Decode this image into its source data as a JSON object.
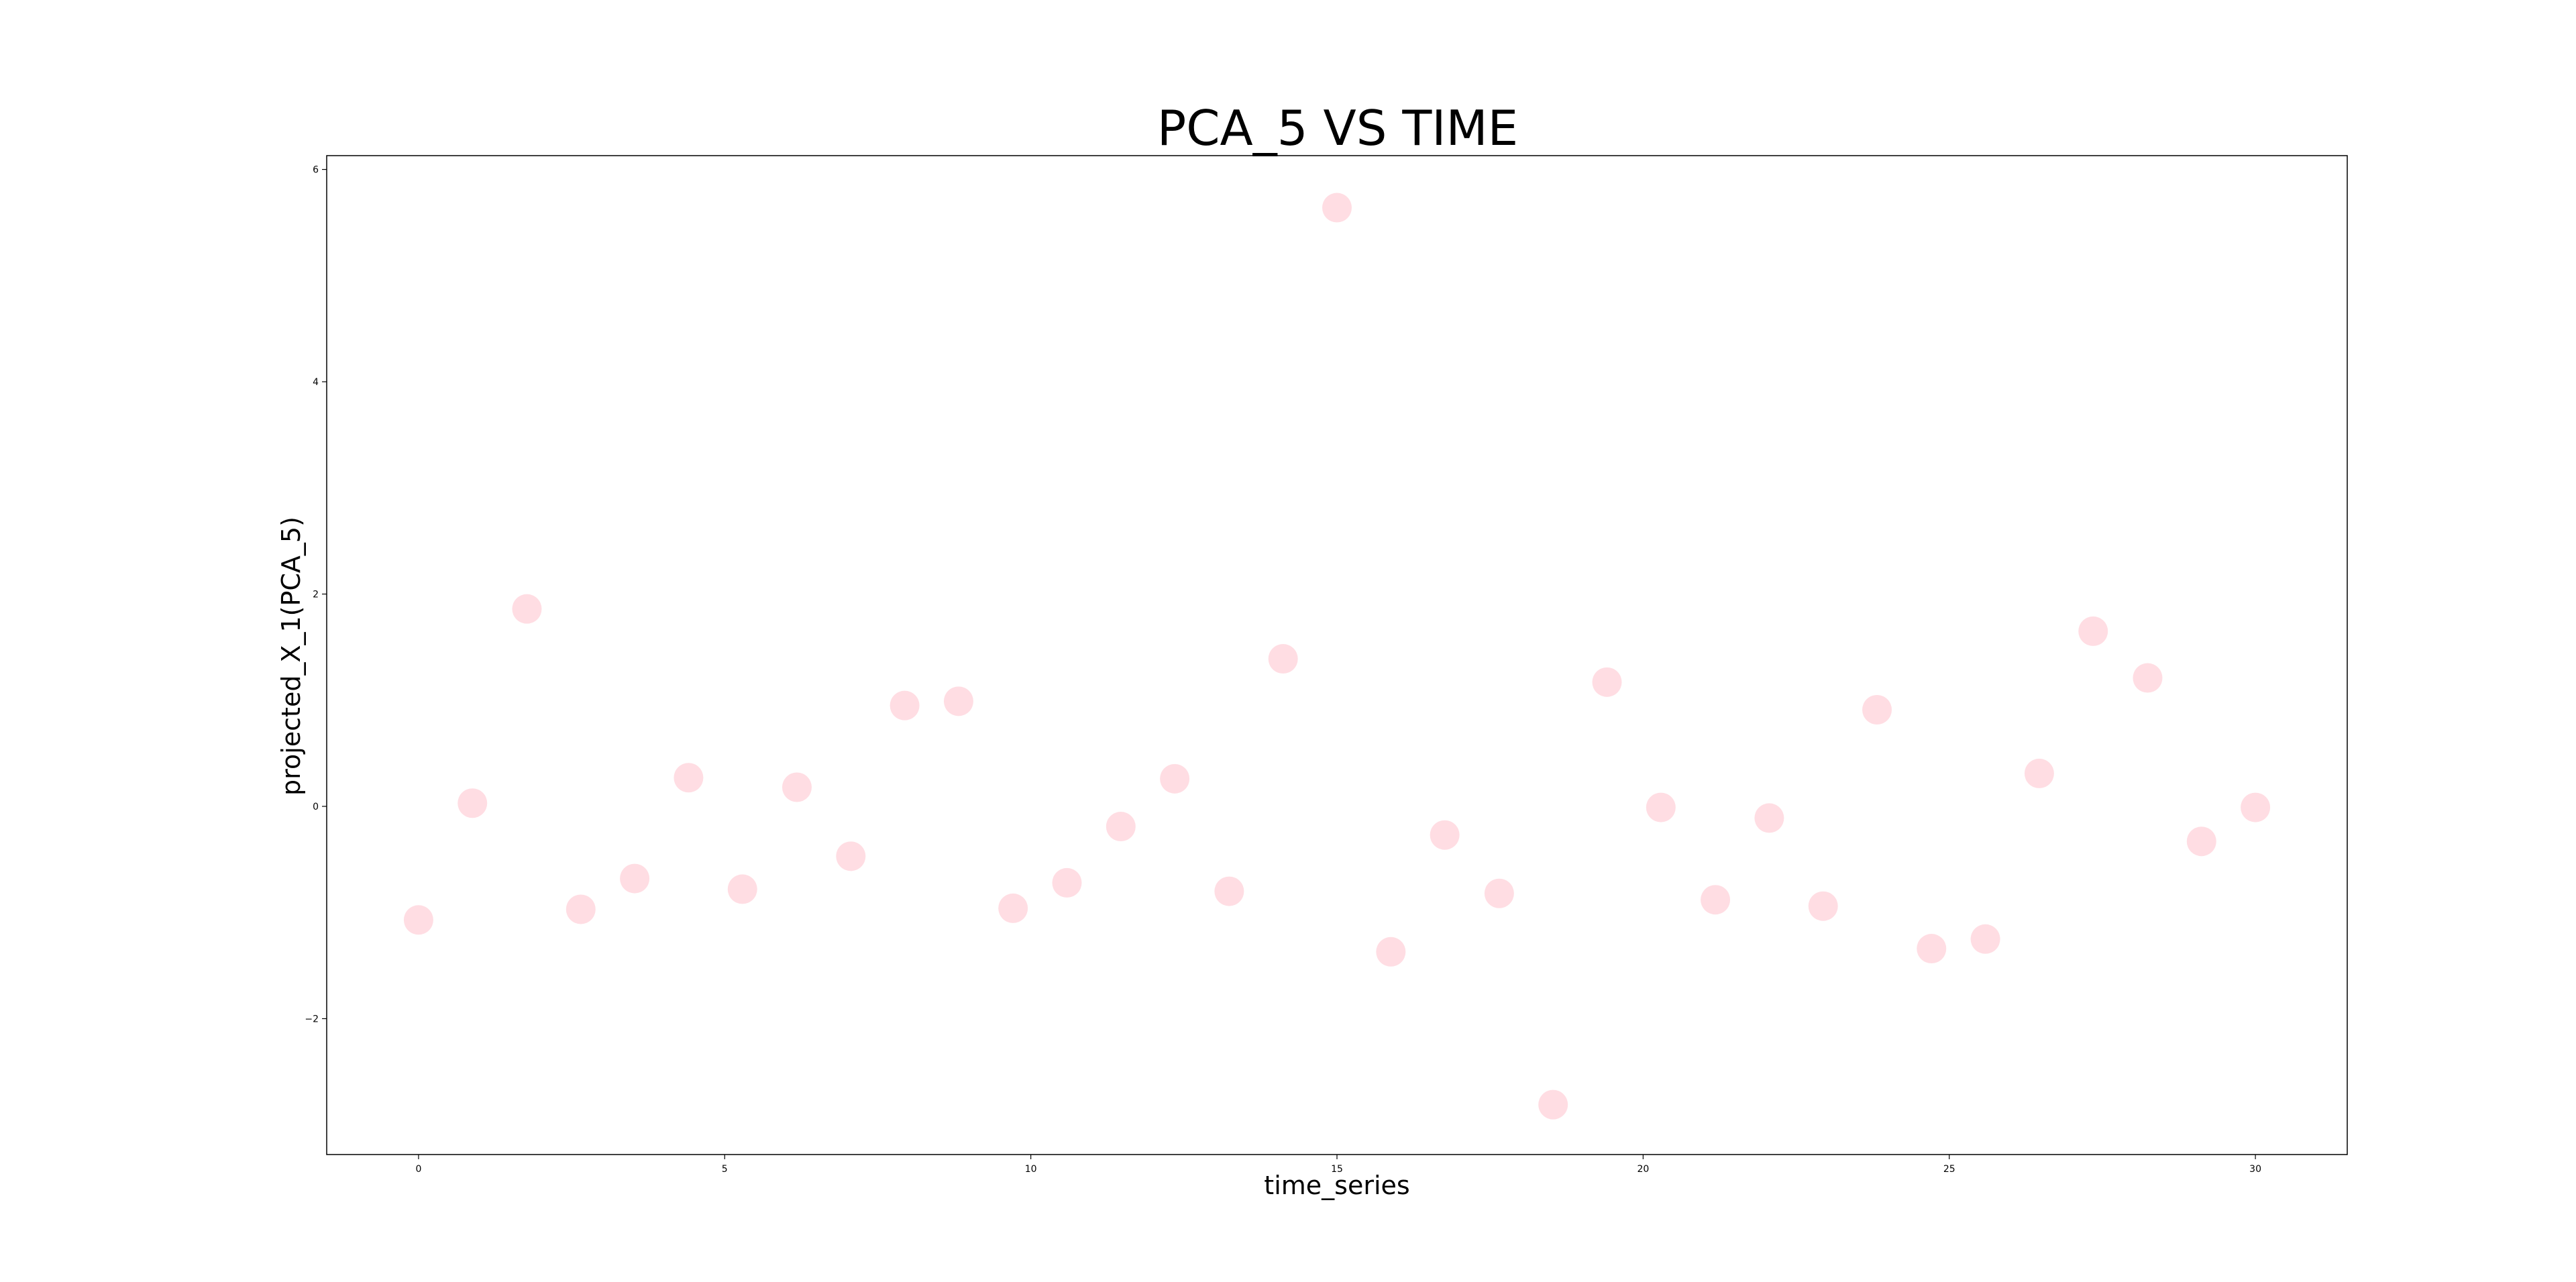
{
  "chart_data": {
    "type": "scatter",
    "title": "PCA_5 VS TIME",
    "xlabel": "time_series",
    "ylabel": "projected_X_1(PCA_5)",
    "xlim": [
      -1.5,
      31.5
    ],
    "ylim": [
      -3.28,
      6.13
    ],
    "xticks": [
      0,
      5,
      10,
      15,
      20,
      25,
      30
    ],
    "yticks": [
      -2,
      0,
      2,
      4,
      6
    ],
    "ytick_labels": [
      "−2",
      "0",
      "2",
      "4",
      "6"
    ],
    "grid": false,
    "marker_color": "#ffdde3",
    "series": [
      {
        "x": [
          0,
          0.88,
          1.77,
          2.65,
          3.53,
          4.41,
          5.29,
          6.18,
          7.06,
          7.94,
          8.82,
          9.71,
          10.59,
          11.47,
          12.35,
          13.24,
          14.12,
          15.0,
          15.88,
          16.76,
          17.65,
          18.53,
          19.41,
          20.29,
          21.18,
          22.06,
          22.94,
          23.82,
          24.71,
          25.59,
          26.47,
          27.35,
          28.24,
          29.12,
          30.0
        ],
        "y": [
          -1.07,
          0.03,
          1.86,
          -0.97,
          -0.68,
          0.27,
          -0.78,
          0.18,
          -0.47,
          0.95,
          0.99,
          -0.96,
          -0.72,
          -0.19,
          0.26,
          -0.8,
          1.39,
          5.64,
          -1.37,
          -0.27,
          -0.82,
          -2.81,
          1.17,
          -0.01,
          -0.88,
          -0.11,
          -0.94,
          0.91,
          -1.34,
          -1.25,
          0.31,
          1.65,
          1.21,
          -0.33,
          -0.01
        ]
      }
    ]
  }
}
